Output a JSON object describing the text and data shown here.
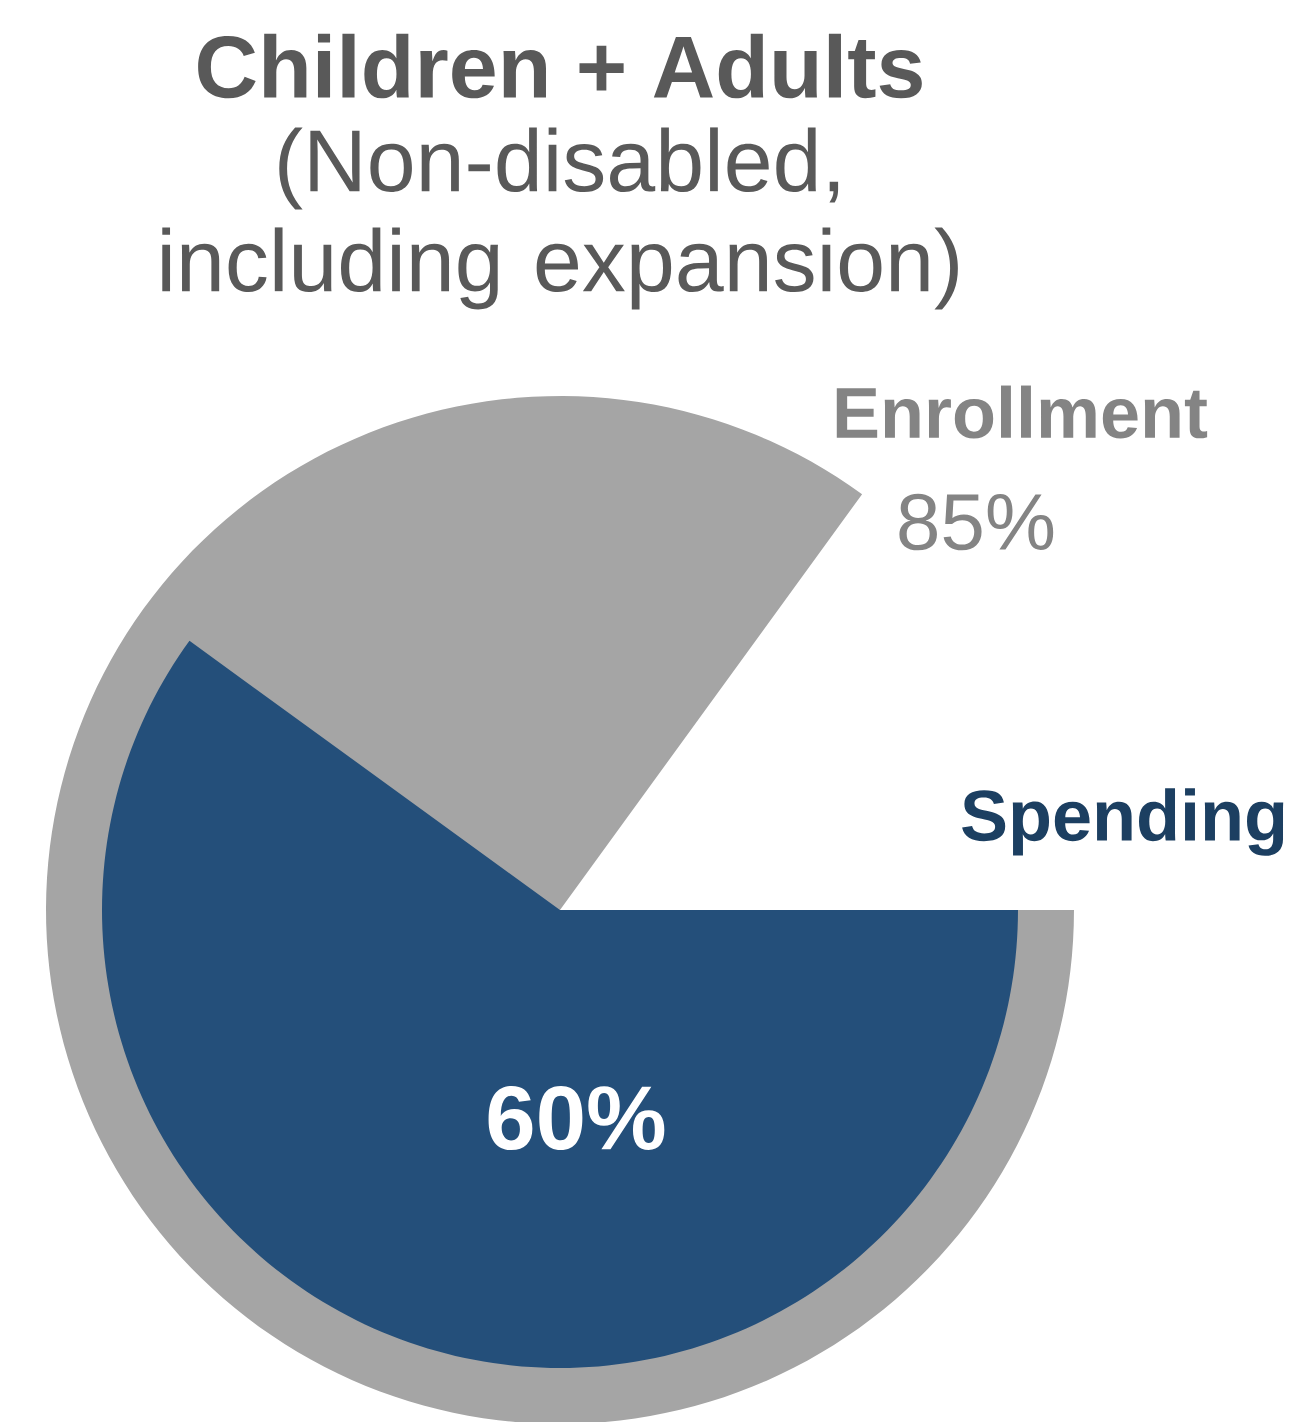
{
  "chart_data": {
    "type": "pie",
    "title": "Children + Adults",
    "subtitle": "(Non-disabled, including expansion)",
    "series": [
      {
        "name": "Enrollment",
        "color": "#a5a5a5",
        "values": [
          85
        ],
        "value_labels": [
          "85%"
        ]
      },
      {
        "name": "Spending",
        "color": "#244f7a",
        "values": [
          60
        ],
        "value_labels": [
          "60%"
        ]
      }
    ]
  }
}
